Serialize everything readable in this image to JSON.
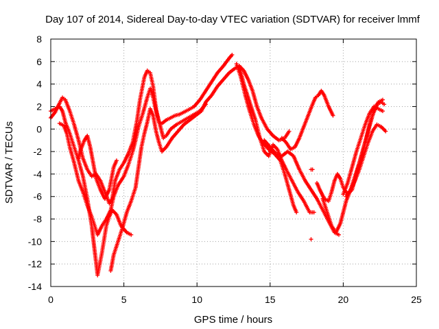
{
  "chart_data": {
    "type": "scatter",
    "title": "Day 107 of 2014, Sidereal Day-to-day VTEC variation (SDTVAR) for receiver lmmf",
    "xlabel": "GPS time / hours",
    "ylabel": "SDTVAR / TECUs",
    "xlim": [
      0,
      25
    ],
    "ylim": [
      -14,
      8
    ],
    "xticks": [
      0,
      5,
      10,
      15,
      20,
      25
    ],
    "yticks": [
      -14,
      -12,
      -10,
      -8,
      -6,
      -4,
      -2,
      0,
      2,
      4,
      6,
      8
    ],
    "xtick_labels": [
      "0",
      "5",
      "10",
      "15",
      "20",
      "25"
    ],
    "ytick_labels": [
      "-14",
      "-12",
      "-10",
      "-8",
      "-6",
      "-4",
      "-2",
      "0",
      "2",
      "4",
      "6",
      "8"
    ],
    "grid": true,
    "legend": "none",
    "marker": "+",
    "color": "#ff0000",
    "series": [
      {
        "points": [
          [
            0.0,
            1.0
          ],
          [
            0.3,
            1.5
          ],
          [
            0.6,
            2.3
          ],
          [
            0.8,
            2.8
          ],
          [
            1.0,
            2.6
          ],
          [
            1.3,
            1.6
          ],
          [
            1.6,
            0.4
          ],
          [
            1.9,
            -1.0
          ],
          [
            2.2,
            -2.6
          ],
          [
            2.5,
            -3.6
          ],
          [
            2.8,
            -4.2
          ],
          [
            3.1,
            -4.0
          ],
          [
            3.4,
            -4.6
          ],
          [
            3.7,
            -5.6
          ],
          [
            4.0,
            -6.6
          ],
          [
            4.2,
            -6.2
          ],
          [
            4.4,
            -4.6
          ],
          [
            4.7,
            -3.6
          ],
          [
            5.0,
            -3.0
          ],
          [
            5.3,
            -2.2
          ],
          [
            5.6,
            -1.2
          ],
          [
            5.9,
            0.8
          ],
          [
            6.1,
            2.6
          ],
          [
            6.4,
            4.6
          ],
          [
            6.6,
            5.2
          ],
          [
            6.8,
            5.0
          ],
          [
            7.0,
            3.8
          ],
          [
            7.2,
            1.8
          ],
          [
            7.4,
            0.6
          ],
          [
            7.6,
            0.5
          ],
          [
            7.9,
            0.8
          ],
          [
            8.2,
            1.0
          ],
          [
            8.5,
            1.2
          ],
          [
            8.8,
            1.3
          ],
          [
            9.1,
            1.5
          ],
          [
            9.4,
            1.7
          ],
          [
            9.8,
            2.0
          ],
          [
            10.2,
            2.6
          ],
          [
            10.6,
            3.4
          ],
          [
            11.0,
            4.2
          ],
          [
            11.4,
            5.0
          ],
          [
            11.8,
            5.6
          ],
          [
            12.2,
            6.3
          ],
          [
            12.4,
            6.6
          ]
        ]
      },
      {
        "points": [
          [
            0.0,
            1.6
          ],
          [
            0.3,
            1.8
          ],
          [
            0.6,
            2.0
          ],
          [
            0.8,
            1.6
          ],
          [
            1.0,
            0.6
          ],
          [
            1.3,
            -0.4
          ],
          [
            1.6,
            -1.6
          ],
          [
            1.9,
            -2.8
          ],
          [
            2.2,
            -4.2
          ],
          [
            2.5,
            -6.2
          ],
          [
            2.8,
            -8.6
          ],
          [
            3.0,
            -10.8
          ],
          [
            3.2,
            -13.0
          ],
          [
            3.5,
            -11.0
          ],
          [
            3.8,
            -8.6
          ],
          [
            4.0,
            -7.8
          ],
          [
            4.2,
            -7.2
          ],
          [
            4.5,
            -7.6
          ],
          [
            4.8,
            -8.6
          ],
          [
            5.2,
            -9.2
          ],
          [
            5.5,
            -9.4
          ]
        ]
      },
      {
        "points": [
          [
            0.6,
            0.5
          ],
          [
            0.9,
            0.3
          ],
          [
            1.1,
            -0.4
          ],
          [
            1.3,
            -1.6
          ],
          [
            1.6,
            -3.0
          ],
          [
            1.9,
            -4.6
          ],
          [
            2.2,
            -5.6
          ],
          [
            2.5,
            -6.8
          ],
          [
            2.8,
            -7.8
          ],
          [
            3.0,
            -8.6
          ],
          [
            3.2,
            -9.4
          ],
          [
            3.5,
            -8.6
          ],
          [
            3.8,
            -8.0
          ],
          [
            4.1,
            -7.2
          ],
          [
            4.3,
            -6.0
          ],
          [
            4.6,
            -5.0
          ],
          [
            5.0,
            -4.2
          ],
          [
            5.3,
            -3.2
          ],
          [
            5.6,
            -2.0
          ],
          [
            5.8,
            -1.0
          ],
          [
            6.0,
            0.2
          ],
          [
            6.3,
            1.4
          ],
          [
            6.6,
            2.8
          ],
          [
            6.8,
            3.6
          ],
          [
            7.0,
            2.8
          ],
          [
            7.2,
            1.6
          ],
          [
            7.5,
            0.2
          ],
          [
            7.7,
            -0.8
          ],
          [
            7.9,
            -0.6
          ],
          [
            8.2,
            0.0
          ],
          [
            8.6,
            0.4
          ],
          [
            9.0,
            0.7
          ],
          [
            9.4,
            1.0
          ],
          [
            9.8,
            1.3
          ],
          [
            10.2,
            1.6
          ],
          [
            10.6,
            2.2
          ]
        ]
      },
      {
        "points": [
          [
            1.9,
            -2.6
          ],
          [
            2.0,
            -2.0
          ],
          [
            2.3,
            -1.0
          ],
          [
            2.5,
            -0.6
          ],
          [
            2.7,
            -1.6
          ],
          [
            2.9,
            -3.0
          ],
          [
            3.1,
            -4.4
          ],
          [
            3.4,
            -5.4
          ],
          [
            3.7,
            -6.2
          ],
          [
            4.0,
            -5.4
          ],
          [
            4.3,
            -3.4
          ],
          [
            4.5,
            -2.8
          ]
        ]
      },
      {
        "points": [
          [
            4.1,
            -12.6
          ],
          [
            4.3,
            -11.2
          ],
          [
            4.6,
            -10.0
          ],
          [
            4.9,
            -8.8
          ],
          [
            5.2,
            -7.4
          ],
          [
            5.5,
            -6.4
          ],
          [
            5.8,
            -5.2
          ],
          [
            6.0,
            -3.4
          ],
          [
            6.2,
            -1.6
          ],
          [
            6.4,
            -0.4
          ],
          [
            6.6,
            0.6
          ],
          [
            6.8,
            1.8
          ],
          [
            7.0,
            1.2
          ],
          [
            7.2,
            -0.2
          ],
          [
            7.4,
            -1.2
          ],
          [
            7.6,
            -2.0
          ],
          [
            7.9,
            -1.6
          ],
          [
            8.3,
            -0.8
          ],
          [
            8.7,
            -0.2
          ],
          [
            9.1,
            0.4
          ],
          [
            9.5,
            0.8
          ],
          [
            9.9,
            1.2
          ],
          [
            10.3,
            1.6
          ],
          [
            10.6,
            2.4
          ]
        ]
      },
      {
        "points": [
          [
            10.6,
            2.4
          ],
          [
            11.0,
            3.0
          ],
          [
            11.4,
            3.8
          ],
          [
            11.8,
            4.4
          ],
          [
            12.2,
            5.0
          ],
          [
            12.6,
            5.4
          ],
          [
            12.9,
            5.6
          ],
          [
            13.2,
            5.2
          ],
          [
            13.5,
            4.4
          ],
          [
            13.8,
            3.4
          ],
          [
            14.1,
            2.0
          ],
          [
            14.4,
            1.0
          ],
          [
            14.8,
            0.0
          ],
          [
            15.2,
            -0.6
          ],
          [
            15.6,
            -1.0
          ],
          [
            16.0,
            -0.8
          ],
          [
            16.3,
            -0.2
          ]
        ]
      },
      {
        "points": [
          [
            12.7,
            5.8
          ],
          [
            13.0,
            4.6
          ],
          [
            13.3,
            3.0
          ],
          [
            13.6,
            1.6
          ],
          [
            13.9,
            0.4
          ],
          [
            14.2,
            -0.6
          ],
          [
            14.5,
            -1.2
          ],
          [
            14.9,
            -1.8
          ],
          [
            15.3,
            -2.2
          ],
          [
            15.7,
            -2.8
          ],
          [
            16.0,
            -4.0
          ],
          [
            16.3,
            -5.4
          ],
          [
            16.6,
            -6.8
          ],
          [
            16.8,
            -7.4
          ]
        ]
      },
      {
        "points": [
          [
            12.9,
            5.6
          ],
          [
            13.2,
            4.0
          ],
          [
            13.6,
            2.4
          ],
          [
            14.0,
            0.8
          ],
          [
            14.3,
            -0.8
          ],
          [
            14.6,
            -2.0
          ],
          [
            14.9,
            -2.4
          ],
          [
            15.2,
            -1.4
          ],
          [
            15.5,
            -1.8
          ],
          [
            15.8,
            -2.8
          ],
          [
            16.1,
            -3.6
          ],
          [
            16.5,
            -4.6
          ],
          [
            16.9,
            -5.6
          ],
          [
            17.3,
            -6.4
          ],
          [
            17.7,
            -7.4
          ],
          [
            18.0,
            -7.4
          ]
        ]
      },
      {
        "points": [
          [
            14.6,
            -1.0
          ],
          [
            15.0,
            -1.6
          ],
          [
            15.4,
            -2.2
          ],
          [
            15.8,
            -2.4
          ],
          [
            16.2,
            -2.0
          ],
          [
            16.6,
            -2.4
          ],
          [
            17.0,
            -3.6
          ],
          [
            17.4,
            -4.6
          ],
          [
            17.8,
            -5.4
          ],
          [
            18.2,
            -6.2
          ],
          [
            18.6,
            -7.2
          ],
          [
            19.0,
            -8.2
          ],
          [
            19.4,
            -9.2
          ],
          [
            19.7,
            -9.4
          ]
        ]
      },
      {
        "points": [
          [
            15.8,
            -0.8
          ],
          [
            16.1,
            -1.2
          ],
          [
            16.4,
            -1.8
          ],
          [
            16.7,
            -1.6
          ],
          [
            17.0,
            -0.8
          ],
          [
            17.3,
            0.2
          ],
          [
            17.6,
            1.2
          ],
          [
            17.9,
            2.2
          ],
          [
            18.1,
            2.8
          ],
          [
            18.3,
            3.0
          ],
          [
            18.5,
            3.4
          ],
          [
            18.7,
            3.0
          ],
          [
            19.0,
            2.0
          ],
          [
            19.3,
            1.2
          ]
        ]
      },
      {
        "points": [
          [
            17.8,
            -3.6
          ],
          [
            17.9,
            -3.6
          ]
        ]
      },
      {
        "points": [
          [
            17.8,
            -9.8
          ]
        ]
      },
      {
        "points": [
          [
            18.2,
            -4.8
          ],
          [
            18.4,
            -5.4
          ],
          [
            18.7,
            -6.2
          ],
          [
            19.0,
            -6.4
          ],
          [
            19.2,
            -5.6
          ],
          [
            19.4,
            -4.6
          ],
          [
            19.6,
            -4.0
          ],
          [
            19.8,
            -4.4
          ],
          [
            20.0,
            -5.2
          ],
          [
            20.3,
            -5.8
          ],
          [
            20.6,
            -5.4
          ],
          [
            20.9,
            -4.0
          ],
          [
            21.2,
            -2.6
          ],
          [
            21.5,
            -1.2
          ],
          [
            21.8,
            0.4
          ],
          [
            22.1,
            1.6
          ],
          [
            22.4,
            2.4
          ],
          [
            22.7,
            2.6
          ]
        ]
      },
      {
        "points": [
          [
            18.6,
            -6.2
          ],
          [
            18.9,
            -7.4
          ],
          [
            19.2,
            -8.6
          ],
          [
            19.5,
            -9.2
          ],
          [
            19.8,
            -8.4
          ],
          [
            20.0,
            -7.4
          ],
          [
            20.2,
            -6.4
          ],
          [
            20.5,
            -5.4
          ],
          [
            20.8,
            -4.2
          ],
          [
            21.1,
            -3.0
          ],
          [
            21.4,
            -1.6
          ],
          [
            21.7,
            -0.2
          ],
          [
            22.0,
            1.2
          ],
          [
            22.3,
            2.2
          ],
          [
            22.6,
            2.4
          ],
          [
            22.8,
            2.2
          ]
        ]
      },
      {
        "points": [
          [
            20.2,
            -6.0
          ],
          [
            20.5,
            -5.4
          ],
          [
            20.8,
            -4.6
          ],
          [
            21.1,
            -3.6
          ],
          [
            21.4,
            -2.4
          ],
          [
            21.7,
            -1.2
          ],
          [
            22.0,
            -0.2
          ],
          [
            22.3,
            0.4
          ],
          [
            22.6,
            0.2
          ],
          [
            22.9,
            -0.2
          ]
        ]
      },
      {
        "points": [
          [
            20.0,
            -5.8
          ],
          [
            20.3,
            -4.8
          ],
          [
            20.6,
            -3.4
          ],
          [
            20.9,
            -2.0
          ],
          [
            21.2,
            -0.8
          ],
          [
            21.5,
            0.4
          ],
          [
            21.8,
            1.4
          ],
          [
            22.1,
            2.0
          ],
          [
            22.4,
            1.8
          ],
          [
            22.7,
            1.6
          ]
        ]
      }
    ]
  }
}
